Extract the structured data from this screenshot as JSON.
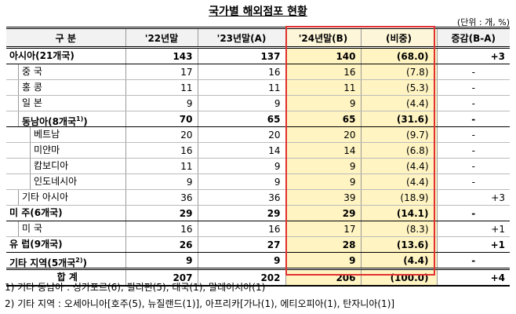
{
  "title": "국가별 해외점포 현황",
  "unit": "(단위 : 개, %)",
  "table": {
    "header": [
      "구 분",
      "'22년말",
      "'23년말(A)",
      "'24년말(B)",
      "(비중)",
      "증감(B-A)"
    ],
    "rows": [
      {
        "label": "아시아(21개국)",
        "level": 0,
        "bold": true,
        "cells": [
          "143",
          "137",
          "140",
          "(68.0)",
          "+3"
        ]
      },
      {
        "label": "중 국",
        "level": 1,
        "cells": [
          "17",
          "16",
          "16",
          "(7.8)",
          "-"
        ]
      },
      {
        "label": "홍 콩",
        "level": 1,
        "cells": [
          "11",
          "11",
          "11",
          "(5.3)",
          "-"
        ]
      },
      {
        "label": "일 본",
        "level": 1,
        "cells": [
          "9",
          "9",
          "9",
          "(4.4)",
          "-"
        ]
      },
      {
        "label": "동남아(8개국",
        "note": "1)",
        "label_end": ")",
        "level": 1,
        "bold": true,
        "cells": [
          "70",
          "65",
          "65",
          "(31.6)",
          "-"
        ]
      },
      {
        "label": "베트남",
        "level": 2,
        "cells": [
          "20",
          "20",
          "20",
          "(9.7)",
          "-"
        ]
      },
      {
        "label": "미얀마",
        "level": 2,
        "cells": [
          "16",
          "14",
          "14",
          "(6.8)",
          "-"
        ]
      },
      {
        "label": "캄보디아",
        "level": 2,
        "cells": [
          "11",
          "9",
          "9",
          "(4.4)",
          "-"
        ]
      },
      {
        "label": "인도네시아",
        "level": 2,
        "cells": [
          "9",
          "9",
          "9",
          "(4.4)",
          "-"
        ]
      },
      {
        "label": "기타 아시아",
        "level": 1,
        "cells": [
          "36",
          "36",
          "39",
          "(18.9)",
          "+3"
        ]
      },
      {
        "label": "미 주(6개국)",
        "level": 0,
        "bold": true,
        "cells": [
          "29",
          "29",
          "29",
          "(14.1)",
          "-"
        ]
      },
      {
        "label": "미 국",
        "level": 1,
        "cells": [
          "16",
          "16",
          "17",
          "(8.3)",
          "+1"
        ]
      },
      {
        "label": "유 럽(9개국)",
        "level": 0,
        "bold": true,
        "cells": [
          "26",
          "27",
          "28",
          "(13.6)",
          "+1"
        ]
      },
      {
        "label": "기타 지역(5개국",
        "note": "2)",
        "label_end": ")",
        "level": 0,
        "bold": true,
        "cells": [
          "9",
          "9",
          "9",
          "(4.4)",
          "-"
        ]
      },
      {
        "label": "합 계",
        "level": 0,
        "bold": true,
        "total": true,
        "cells": [
          "207",
          "202",
          "206",
          "(100.0)",
          "+4"
        ]
      }
    ]
  },
  "footnotes": [
    "1) 기타 동남아 : 싱가포르(6), 필리핀(5), 태국(1), 말레이시아(1)",
    "2) 기타 지역 : 오세아니아[호주(5), 뉴질랜드(1)], 아프리카[가나(1), 에티오피아(1), 탄자니아(1)]"
  ]
}
